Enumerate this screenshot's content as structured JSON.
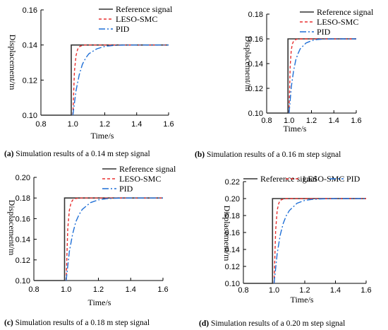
{
  "chart_data": [
    {
      "type": "line",
      "panel": "a",
      "caption_letter": "(a)",
      "caption_text": " Simulation results of a 0.14 m step signal",
      "xlabel": "Time/s",
      "ylabel": "Displacement/m",
      "xlim": [
        0.8,
        1.6
      ],
      "ylim": [
        0.1,
        0.16
      ],
      "x_ticks": [
        "0.8",
        "1.0",
        "1.2",
        "1.4",
        "1.6"
      ],
      "y_ticks": [
        "0.10",
        "0.12",
        "0.14",
        "0.16"
      ],
      "legend": [
        "Reference signal",
        "LESO-SMC",
        "PID"
      ],
      "legend_position": "top-right",
      "grid": false,
      "series": [
        {
          "name": "Reference signal",
          "color": "#333333",
          "style": "solid",
          "x": [
            0.8,
            0.99,
            0.99,
            1.6
          ],
          "y": [
            0.1,
            0.1,
            0.14,
            0.14
          ]
        },
        {
          "name": "LESO-SMC",
          "color": "#e83030",
          "style": "dash",
          "x": [
            1.0,
            1.01,
            1.02,
            1.03,
            1.04,
            1.06,
            1.08,
            1.1,
            1.6
          ],
          "y": [
            0.1,
            0.125,
            0.134,
            0.1375,
            0.139,
            0.1398,
            0.14,
            0.14,
            0.14
          ]
        },
        {
          "name": "PID",
          "color": "#1f6fd6",
          "style": "dashdot",
          "x": [
            1.0,
            1.02,
            1.04,
            1.06,
            1.08,
            1.1,
            1.15,
            1.2,
            1.25,
            1.3,
            1.4,
            1.6
          ],
          "y": [
            0.1,
            0.114,
            0.123,
            0.129,
            0.1325,
            0.135,
            0.1378,
            0.1392,
            0.1397,
            0.1399,
            0.14,
            0.14
          ]
        }
      ]
    },
    {
      "type": "line",
      "panel": "b",
      "caption_letter": "(b)",
      "caption_text": " Simulation results of a 0.16 m step signal",
      "xlabel": "Time/s",
      "ylabel": "Displacement/m",
      "xlim": [
        0.8,
        1.6
      ],
      "ylim": [
        0.1,
        0.18
      ],
      "x_ticks": [
        "0.8",
        "1.0",
        "1.2",
        "1.4",
        "1.6"
      ],
      "y_ticks": [
        "0.10",
        "0.12",
        "0.14",
        "0.16",
        "0.18"
      ],
      "legend": [
        "Reference signal",
        "LESO-SMC",
        "PID"
      ],
      "legend_position": "top-right",
      "grid": false,
      "series": [
        {
          "name": "Reference signal",
          "color": "#333333",
          "style": "solid",
          "x": [
            0.8,
            0.99,
            0.99,
            1.6
          ],
          "y": [
            0.1,
            0.1,
            0.16,
            0.16
          ]
        },
        {
          "name": "LESO-SMC",
          "color": "#e83030",
          "style": "dash",
          "x": [
            1.0,
            1.01,
            1.02,
            1.03,
            1.04,
            1.06,
            1.08,
            1.1,
            1.6
          ],
          "y": [
            0.1,
            0.138,
            0.151,
            0.156,
            0.158,
            0.1595,
            0.16,
            0.16,
            0.16
          ]
        },
        {
          "name": "PID",
          "color": "#1f6fd6",
          "style": "dashdot",
          "x": [
            1.0,
            1.02,
            1.04,
            1.06,
            1.08,
            1.1,
            1.15,
            1.2,
            1.25,
            1.3,
            1.4,
            1.6
          ],
          "y": [
            0.1,
            0.121,
            0.134,
            0.143,
            0.148,
            0.152,
            0.1566,
            0.1585,
            0.1595,
            0.1598,
            0.16,
            0.16
          ]
        }
      ]
    },
    {
      "type": "line",
      "panel": "c",
      "caption_letter": "(c)",
      "caption_text": " Simulation results of a 0.18 m step signal",
      "xlabel": "Time/s",
      "ylabel": "Displacement/m",
      "xlim": [
        0.8,
        1.6
      ],
      "ylim": [
        0.1,
        0.2
      ],
      "x_ticks": [
        "0.8",
        "1.0",
        "1.2",
        "1.4",
        "1.6"
      ],
      "y_ticks": [
        "0.10",
        "0.12",
        "0.14",
        "0.16",
        "0.18",
        "0.20"
      ],
      "legend": [
        "Reference signal",
        "LESO-SMC",
        "PID"
      ],
      "legend_position": "top-right",
      "grid": false,
      "series": [
        {
          "name": "Reference signal",
          "color": "#333333",
          "style": "solid",
          "x": [
            0.8,
            0.99,
            0.99,
            1.6
          ],
          "y": [
            0.1,
            0.1,
            0.18,
            0.18
          ]
        },
        {
          "name": "LESO-SMC",
          "color": "#e83030",
          "style": "dash",
          "x": [
            1.0,
            1.01,
            1.02,
            1.03,
            1.04,
            1.06,
            1.08,
            1.1,
            1.6
          ],
          "y": [
            0.1,
            0.15,
            0.168,
            0.175,
            0.178,
            0.1795,
            0.18,
            0.18,
            0.18
          ]
        },
        {
          "name": "PID",
          "color": "#1f6fd6",
          "style": "dashdot",
          "x": [
            1.0,
            1.02,
            1.04,
            1.06,
            1.08,
            1.1,
            1.15,
            1.2,
            1.25,
            1.3,
            1.4,
            1.6
          ],
          "y": [
            0.1,
            0.128,
            0.145,
            0.157,
            0.164,
            0.169,
            0.1755,
            0.1782,
            0.1793,
            0.1797,
            0.18,
            0.18
          ]
        }
      ]
    },
    {
      "type": "line",
      "panel": "d",
      "caption_letter": "(d)",
      "caption_text": " Simulation results of a 0.20 m step signal",
      "xlabel": "Time/s",
      "ylabel": "Displacement/m",
      "xlim": [
        0.8,
        1.6
      ],
      "ylim": [
        0.1,
        0.22
      ],
      "x_ticks": [
        "0.8",
        "1.0",
        "1.2",
        "1.4",
        "1.6"
      ],
      "y_ticks": [
        "0.10",
        "0.12",
        "0.14",
        "0.16",
        "0.18",
        "0.20",
        "0.22"
      ],
      "legend": [
        "Reference signal",
        "LESO-SMC",
        "PID"
      ],
      "legend_position": "top",
      "grid": false,
      "series": [
        {
          "name": "Reference signal",
          "color": "#333333",
          "style": "solid",
          "x": [
            0.8,
            0.99,
            0.99,
            1.6
          ],
          "y": [
            0.1,
            0.1,
            0.2,
            0.2
          ]
        },
        {
          "name": "LESO-SMC",
          "color": "#e83030",
          "style": "dash",
          "x": [
            1.0,
            1.01,
            1.02,
            1.03,
            1.04,
            1.06,
            1.08,
            1.1,
            1.6
          ],
          "y": [
            0.1,
            0.162,
            0.186,
            0.194,
            0.198,
            0.1995,
            0.2,
            0.2,
            0.2
          ]
        },
        {
          "name": "PID",
          "color": "#1f6fd6",
          "style": "dashdot",
          "x": [
            1.0,
            1.02,
            1.04,
            1.06,
            1.08,
            1.1,
            1.15,
            1.2,
            1.25,
            1.3,
            1.4,
            1.6
          ],
          "y": [
            0.1,
            0.135,
            0.157,
            0.171,
            0.18,
            0.186,
            0.1945,
            0.1978,
            0.1991,
            0.1996,
            0.2,
            0.2
          ]
        }
      ]
    }
  ]
}
